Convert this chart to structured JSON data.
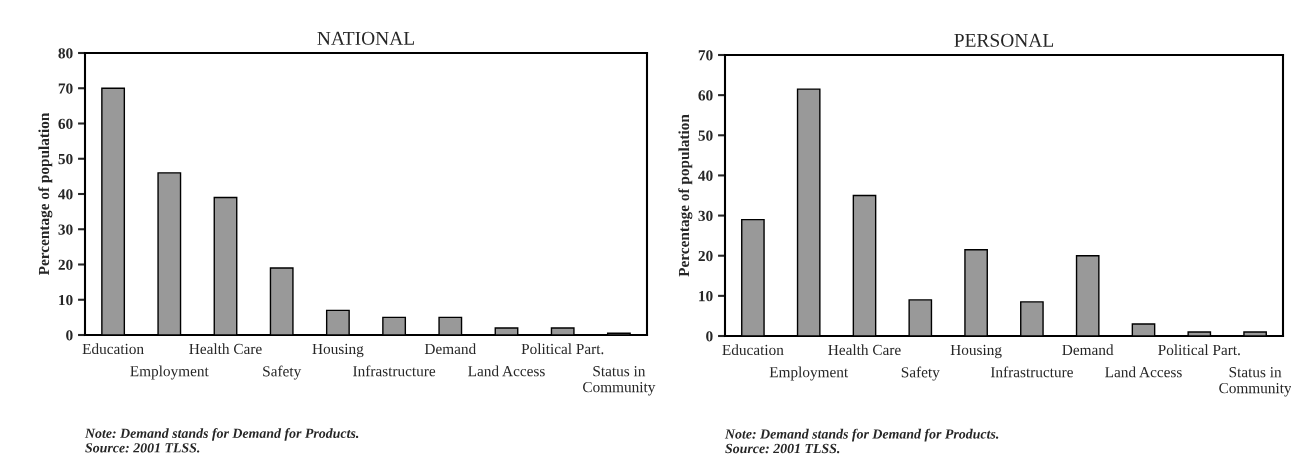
{
  "chart_data": [
    {
      "type": "bar",
      "title": "NATIONAL",
      "ylabel": "Percentage of population",
      "categories": [
        "Education",
        "Employment",
        "Health Care",
        "Safety",
        "Housing",
        "Infrastructure",
        "Demand",
        "Land Access",
        "Political Part.",
        "Status in\nCommunity"
      ],
      "values": [
        70,
        46,
        39,
        19,
        7,
        5,
        5,
        2,
        2,
        0.5
      ],
      "color": "#999999",
      "ylim": [
        0,
        80
      ],
      "yticks": [
        0,
        10,
        20,
        30,
        40,
        50,
        60,
        70,
        80
      ],
      "grid": false,
      "legend": false,
      "annotations": [
        "Note: Demand stands for Demand for Products.\nSource: 2001 TLSS."
      ]
    },
    {
      "type": "bar",
      "title": "PERSONAL",
      "ylabel": "Percentage of population",
      "categories": [
        "Education",
        "Employment",
        "Health Care",
        "Safety",
        "Housing",
        "Infrastructure",
        "Demand",
        "Land Access",
        "Political Part.",
        "Status in\nCommunity"
      ],
      "values": [
        29,
        61.5,
        35,
        9,
        21.5,
        8.5,
        20,
        3,
        1,
        1
      ],
      "color": "#999999",
      "ylim": [
        0,
        70
      ],
      "yticks": [
        0,
        10,
        20,
        30,
        40,
        50,
        60,
        70
      ],
      "grid": false,
      "legend": false,
      "annotations": [
        "Note: Demand stands for Demand for Products.\nSource: 2001 TLSS."
      ]
    }
  ]
}
